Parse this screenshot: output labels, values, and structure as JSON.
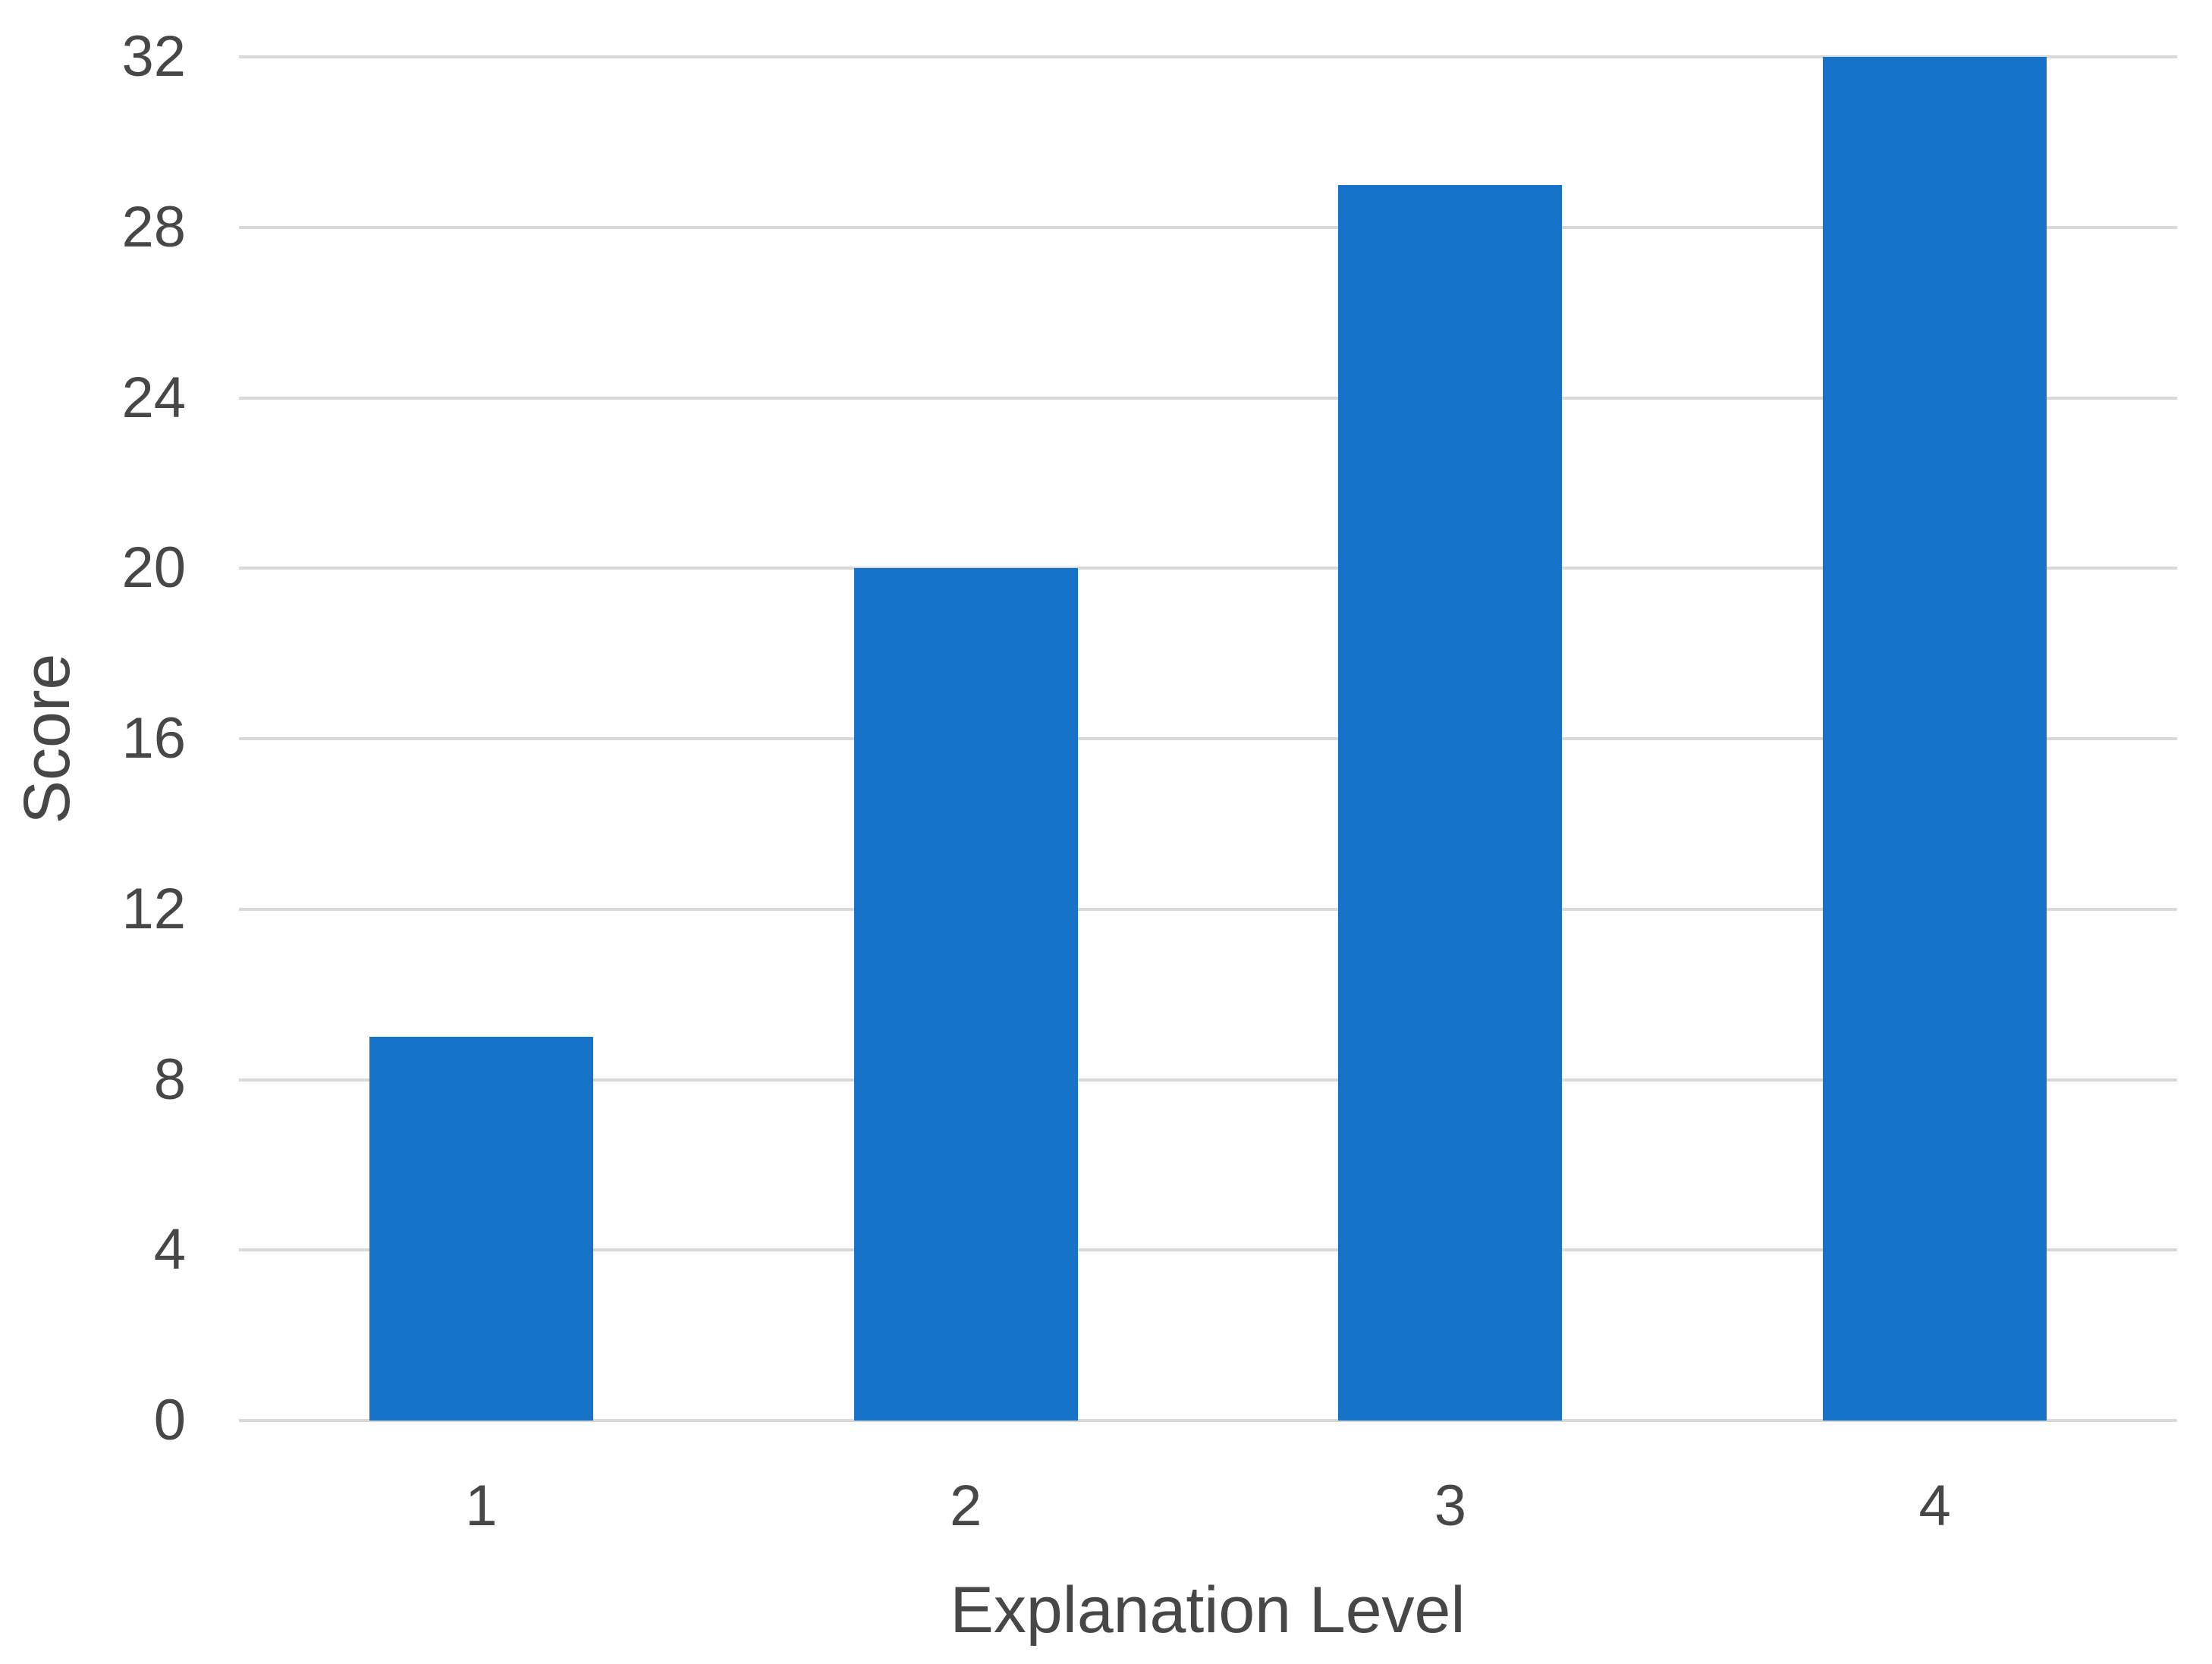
{
  "chart_data": {
    "type": "bar",
    "categories": [
      "1",
      "2",
      "3",
      "4"
    ],
    "values": [
      9,
      20,
      29,
      32
    ],
    "title": "",
    "xlabel": "Explanation Level",
    "ylabel": "Score",
    "ylim": [
      0,
      32
    ],
    "yticks": [
      0,
      4,
      8,
      12,
      16,
      20,
      24,
      28,
      32
    ],
    "grid": true,
    "legend_position": "none",
    "colors": {
      "bar": "#1673ca",
      "gridline": "#d9d9d9",
      "text": "#474747",
      "background": "#ffffff"
    }
  }
}
